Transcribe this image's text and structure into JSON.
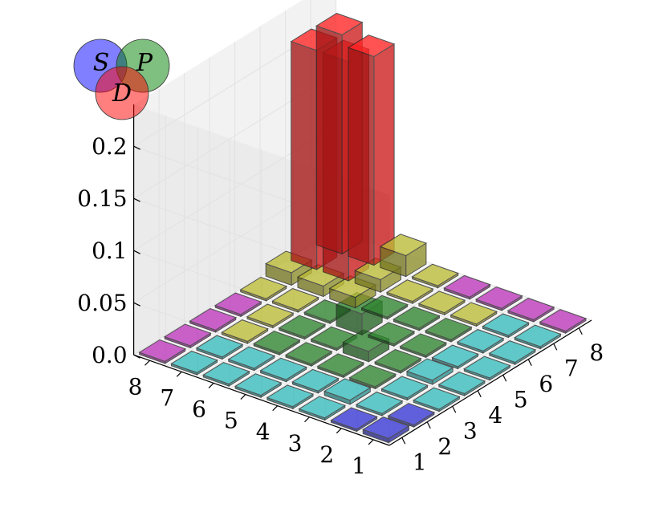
{
  "chart_data": {
    "type": "bar3d",
    "title": "",
    "x_ticks": [
      "1",
      "2",
      "3",
      "4",
      "5",
      "6",
      "7",
      "8"
    ],
    "y_ticks": [
      "1",
      "2",
      "3",
      "4",
      "5",
      "6",
      "7",
      "8"
    ],
    "z_ticks": [
      "0.0",
      "0.05",
      "0.1",
      "0.15",
      "0.2"
    ],
    "zlim": [
      0,
      0.2
    ],
    "grid": true,
    "legend": {
      "placement": "top-left",
      "circles": [
        {
          "label": "S",
          "color": "#0000ff"
        },
        {
          "label": "P",
          "color": "#008000"
        },
        {
          "label": "D",
          "color": "#ff0000"
        }
      ]
    },
    "group_colors": {
      "blue": "#3333cc",
      "cyan": "#33b2b2",
      "magenta": "#b233b2",
      "green": "#2d7f2d",
      "yellow": "#b2b233",
      "red": "#ff2222"
    },
    "heights": [
      [
        0.004,
        0.002,
        0.002,
        0.002,
        0.002,
        0.002,
        0.002,
        0.002
      ],
      [
        0.002,
        0.002,
        0.002,
        0.004,
        0.002,
        0.002,
        0.002,
        0.002
      ],
      [
        0.002,
        0.004,
        0.002,
        0.002,
        0.002,
        0.002,
        0.002,
        0.002
      ],
      [
        0.002,
        0.002,
        0.002,
        0.01,
        0.002,
        0.002,
        0.002,
        0.002
      ],
      [
        0.002,
        0.002,
        0.002,
        0.002,
        0.02,
        0.002,
        0.002,
        0.002
      ],
      [
        0.002,
        0.002,
        0.002,
        0.002,
        0.002,
        0.01,
        0.012,
        0.02
      ],
      [
        0.002,
        0.002,
        0.002,
        0.002,
        0.002,
        0.01,
        0.21,
        0.2
      ],
      [
        0.002,
        0.002,
        0.002,
        0.002,
        0.002,
        0.012,
        0.21,
        0.21
      ]
    ],
    "colors": [
      [
        "blue",
        "blue",
        "cyan",
        "cyan",
        "cyan",
        "cyan",
        "cyan",
        "magenta"
      ],
      [
        "blue",
        "cyan",
        "cyan",
        "cyan",
        "cyan",
        "cyan",
        "cyan",
        "magenta"
      ],
      [
        "cyan",
        "cyan",
        "green",
        "green",
        "green",
        "green",
        "yellow",
        "magenta"
      ],
      [
        "cyan",
        "cyan",
        "green",
        "green",
        "green",
        "green",
        "yellow",
        "magenta"
      ],
      [
        "cyan",
        "cyan",
        "green",
        "green",
        "green",
        "green",
        "yellow",
        "yellow"
      ],
      [
        "cyan",
        "cyan",
        "green",
        "green",
        "green",
        "yellow",
        "yellow",
        "yellow"
      ],
      [
        "cyan",
        "cyan",
        "yellow",
        "yellow",
        "yellow",
        "yellow",
        "red",
        "red"
      ],
      [
        "magenta",
        "magenta",
        "magenta",
        "magenta",
        "yellow",
        "yellow",
        "red",
        "red"
      ]
    ]
  }
}
